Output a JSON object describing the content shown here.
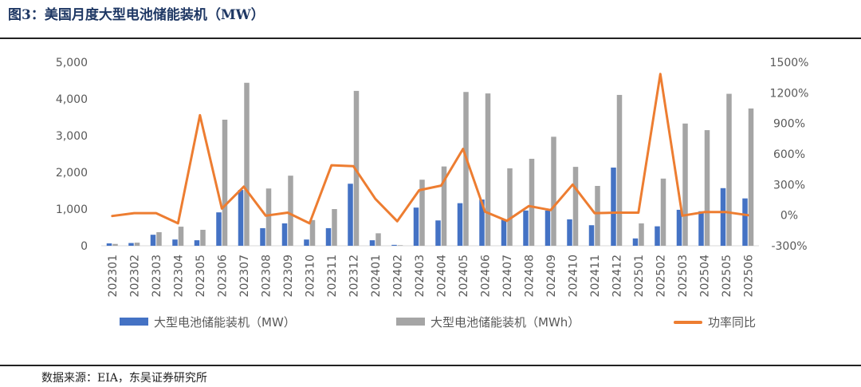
{
  "title": "图3：美国月度大型电池储能装机（MW）",
  "title_color": "#1F3864",
  "source": "数据来源：EIA，东吴证券研究所",
  "chart_data": {
    "type": "bar",
    "categories": [
      "202301",
      "202302",
      "202303",
      "202304",
      "202305",
      "202306",
      "202307",
      "202308",
      "202309",
      "202310",
      "202311",
      "202312",
      "202401",
      "202402",
      "202403",
      "202404",
      "202405",
      "202406",
      "202407",
      "202408",
      "202409",
      "202410",
      "202411",
      "202412",
      "202501",
      "202502",
      "202503",
      "202504",
      "202505",
      "202506"
    ],
    "series": [
      {
        "name": "大型电池储能装机（MW）",
        "type": "bar",
        "axis": "left",
        "color": "#4472C4",
        "values": [
          65,
          75,
          300,
          170,
          150,
          910,
          1520,
          480,
          610,
          170,
          480,
          1690,
          150,
          25,
          1040,
          690,
          1160,
          1260,
          720,
          960,
          960,
          720,
          560,
          2130,
          200,
          530,
          980,
          940,
          1570,
          1290
        ]
      },
      {
        "name": "大型电池储能装机（MWh）",
        "type": "bar",
        "axis": "left",
        "color": "#A5A5A5",
        "values": [
          50,
          85,
          370,
          520,
          435,
          3435,
          4440,
          1560,
          1910,
          700,
          1000,
          4220,
          340,
          15,
          1800,
          2160,
          4190,
          4150,
          2110,
          2370,
          2970,
          2150,
          1630,
          4110,
          610,
          1830,
          3330,
          3150,
          4140,
          3740
        ]
      },
      {
        "name": "功率同比",
        "type": "line",
        "axis": "right",
        "color": "#ED7D31",
        "values": [
          -8,
          20,
          20,
          -80,
          980,
          65,
          280,
          -5,
          25,
          -80,
          490,
          480,
          160,
          -60,
          245,
          290,
          650,
          35,
          -55,
          90,
          50,
          300,
          20,
          25,
          25,
          1385,
          -5,
          30,
          30,
          0
        ]
      }
    ],
    "y_left": {
      "ylim": [
        0,
        5000
      ],
      "ticks": [
        {
          "value": 0,
          "label": "0"
        },
        {
          "value": 1000,
          "label": "1,000"
        },
        {
          "value": 2000,
          "label": "2,000"
        },
        {
          "value": 3000,
          "label": "3,000"
        },
        {
          "value": 4000,
          "label": "4,000"
        },
        {
          "value": 5000,
          "label": "5,000"
        }
      ]
    },
    "y_right": {
      "ylim": [
        -300,
        1500
      ],
      "ticks": [
        {
          "value": -300,
          "label": "-300%"
        },
        {
          "value": 0,
          "label": "0%"
        },
        {
          "value": 300,
          "label": "300%"
        },
        {
          "value": 600,
          "label": "600%"
        },
        {
          "value": 900,
          "label": "900%"
        },
        {
          "value": 1200,
          "label": "1200%"
        },
        {
          "value": 1500,
          "label": "1500%"
        }
      ]
    },
    "legend": "bottom",
    "grid": false
  }
}
